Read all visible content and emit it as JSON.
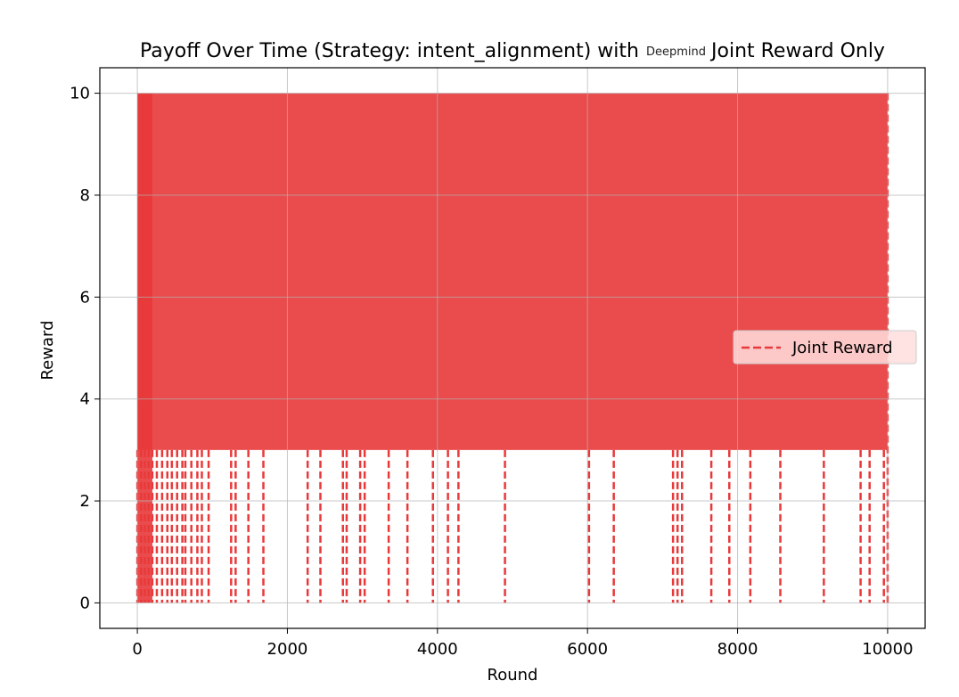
{
  "chart_data": {
    "type": "line",
    "title_prefix": "Payoff Over Time (Strategy: intent_alignment) with",
    "title_logo": "Deepmind",
    "title_suffix": "Joint Reward Only",
    "xlabel": "Round",
    "ylabel": "Reward",
    "xlim": [
      -500,
      10500
    ],
    "ylim": [
      -0.5,
      10.5
    ],
    "xticks": [
      0,
      2000,
      4000,
      6000,
      8000,
      10000
    ],
    "yticks": [
      0,
      2,
      4,
      6,
      8,
      10
    ],
    "grid": true,
    "legend_position": "center-right",
    "series": [
      {
        "name": "Joint Reward",
        "color": "#e8393a",
        "linestyle": "dashed",
        "x_range": [
          0,
          10000
        ],
        "band_low": 3,
        "band_high": 10,
        "value_levels": [
          0,
          3,
          10
        ],
        "drop_to_zero_rounds": [
          0,
          50,
          100,
          150,
          200,
          260,
          330,
          400,
          460,
          530,
          600,
          640,
          720,
          800,
          860,
          950,
          1250,
          1310,
          1480,
          1680,
          2270,
          2440,
          2740,
          2790,
          2970,
          3030,
          3350,
          3600,
          3940,
          4140,
          4280,
          4900,
          6020,
          6350,
          7140,
          7200,
          7260,
          7650,
          7890,
          8170,
          8570,
          9150,
          9640,
          9760,
          9950
        ]
      }
    ]
  }
}
